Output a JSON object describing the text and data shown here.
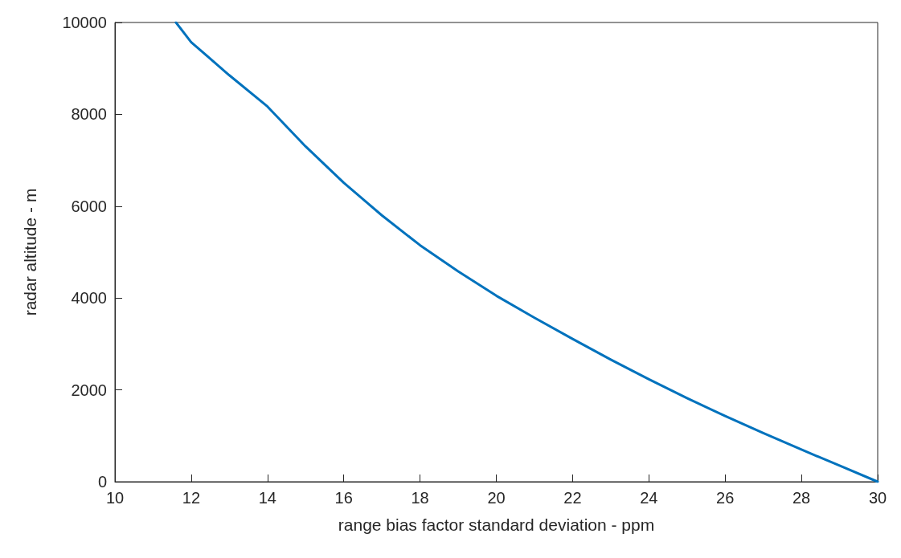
{
  "chart_data": {
    "type": "line",
    "xlabel": "range bias factor standard deviation - ppm",
    "ylabel": "radar altitude - m",
    "x": [
      11.6,
      12,
      13,
      14,
      15,
      16,
      17,
      18,
      19,
      20,
      21,
      22,
      23,
      24,
      25,
      26,
      27,
      28,
      29,
      30
    ],
    "series": [
      {
        "color": "#0072bd",
        "values": [
          10000,
          9570,
          8850,
          8170,
          7300,
          6510,
          5800,
          5150,
          4580,
          4050,
          3570,
          3110,
          2660,
          2230,
          1820,
          1430,
          1060,
          700,
          350,
          0
        ]
      }
    ],
    "xlim": [
      10,
      30
    ],
    "xticks": [
      10,
      12,
      14,
      16,
      18,
      20,
      22,
      24,
      26,
      28,
      30
    ],
    "ylim": [
      0,
      10000
    ],
    "yticks": [
      0,
      2000,
      4000,
      6000,
      8000,
      10000
    ],
    "grid": false,
    "marker": "none",
    "line_style": "solid"
  }
}
